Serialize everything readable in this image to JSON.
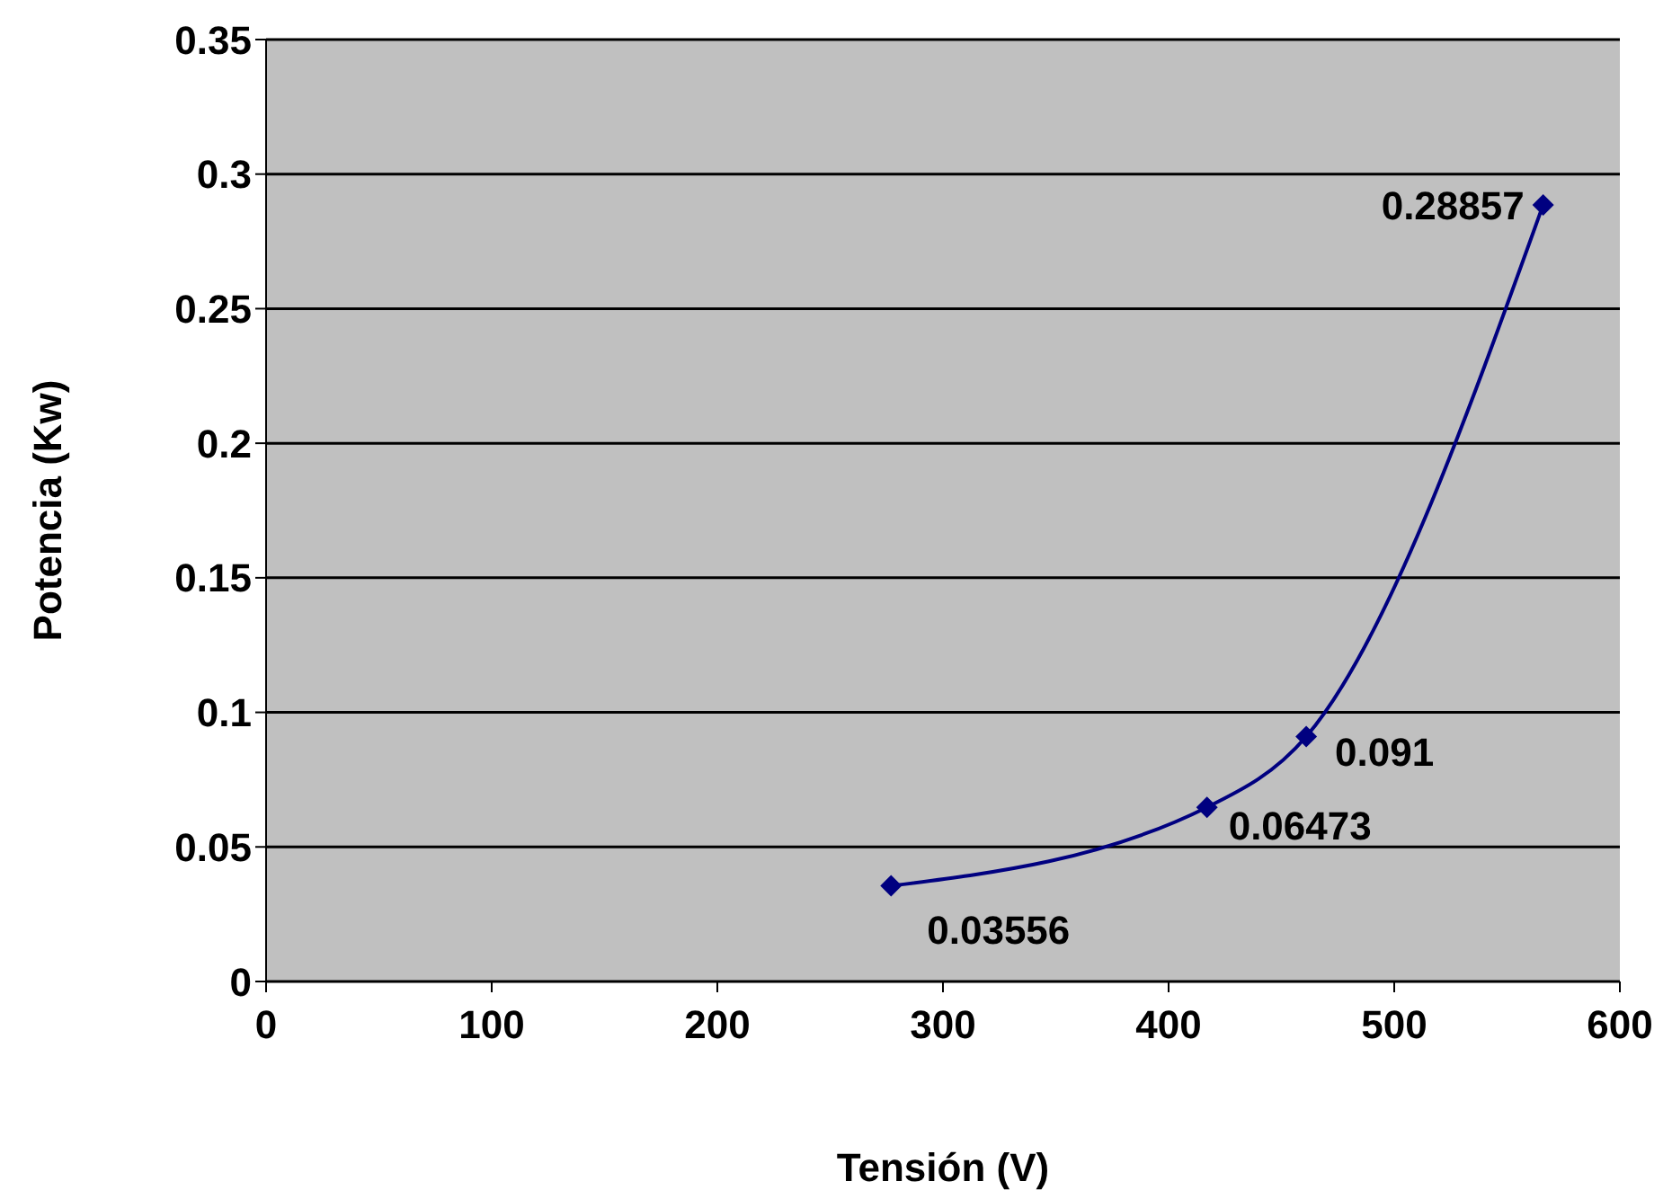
{
  "chart_data": {
    "type": "line",
    "xlabel": "Tensión (V)",
    "ylabel": "Potencia (Kw)",
    "x": [
      277,
      417,
      461,
      566
    ],
    "series": [
      {
        "color": "#000080",
        "values": [
          0.03556,
          0.06473,
          0.091,
          0.28857
        ]
      }
    ],
    "data_labels": true,
    "marker": "diamond",
    "line_style": "solid",
    "grid": "y",
    "legend": false,
    "xlim": [
      0,
      600
    ],
    "xticks": [
      0,
      100,
      200,
      300,
      400,
      500,
      600
    ],
    "ylim": [
      0,
      0.35
    ],
    "yticks": [
      0,
      0.05,
      0.1,
      0.15,
      0.2,
      0.25,
      0.3,
      0.35
    ]
  }
}
